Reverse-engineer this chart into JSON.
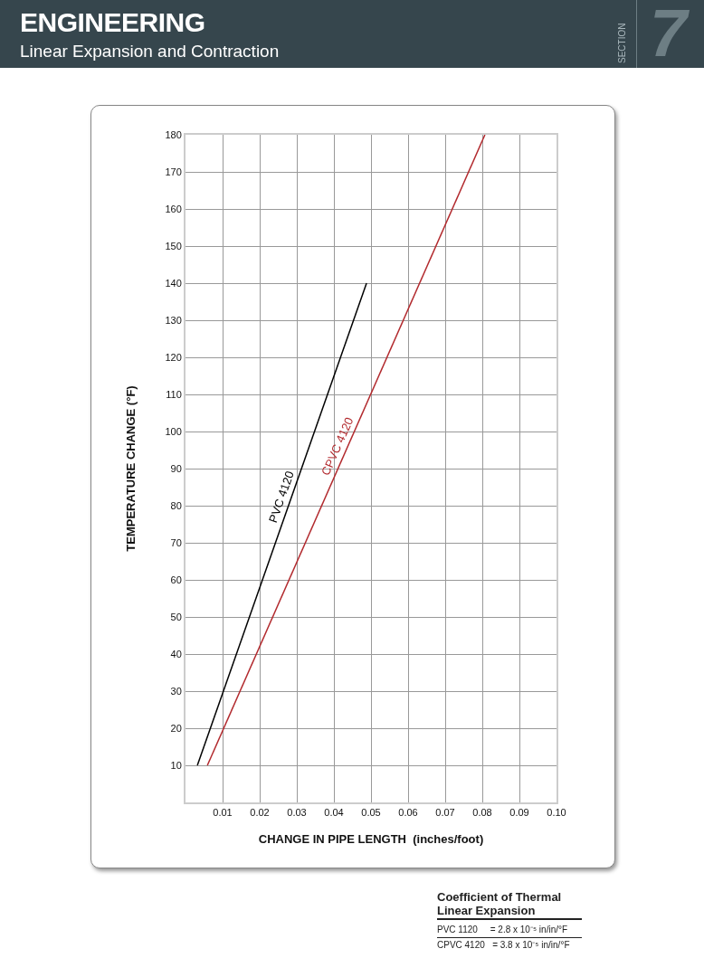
{
  "chart_data": {
    "type": "line",
    "title": "ENGINEERING",
    "subtitle": "Linear Expansion and Contraction",
    "xlabel": "CHANGE IN PIPE LENGTH  (inches/foot)",
    "ylabel": "TEMPERATURE CHANGE (°F)",
    "series": [
      {
        "name": "PVC 4120",
        "color": "#000000",
        "x": [
          0.0032,
          0.0488
        ],
        "values": [
          10,
          140
        ]
      },
      {
        "name": "CPVC 4120",
        "color": "#b22a2e",
        "x": [
          0.0059,
          0.0807
        ],
        "values": [
          10,
          180
        ]
      }
    ],
    "xlim": [
      0,
      0.1
    ],
    "xticks": [
      0.01,
      0.02,
      0.03,
      0.04,
      0.05,
      0.06,
      0.07,
      0.08,
      0.09,
      {
        "value": 0.1,
        "label": "0.10"
      }
    ],
    "ylim": [
      0,
      180
    ],
    "yticks": [
      10,
      20,
      30,
      40,
      50,
      60,
      70,
      80,
      90,
      100,
      110,
      120,
      130,
      140,
      150,
      160,
      170,
      180
    ],
    "grid": true,
    "legend": false,
    "marker": "none",
    "line_style": "solid",
    "annotations": [
      "SECTION",
      "7",
      "Coefficient  of  Thermal Linear Expansion",
      "PVC 1120     = 2.8 x 10⁻⁵ in/in/°F",
      "CPVC 4120   = 3.8 x 10⁻⁵ in/in/°F"
    ]
  }
}
